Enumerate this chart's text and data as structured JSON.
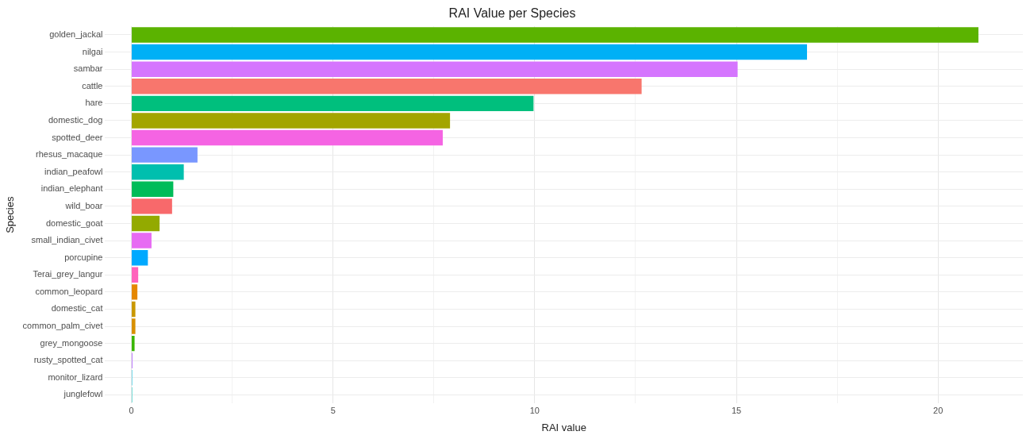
{
  "chart_data": {
    "type": "bar",
    "orientation": "horizontal",
    "title": "RAI Value per Species",
    "xlabel": "RAI value",
    "ylabel": "Species",
    "categories": [
      "golden_jackal",
      "nilgai",
      "sambar",
      "cattle",
      "hare",
      "domestic_dog",
      "spotted_deer",
      "rhesus_macaque",
      "indian_peafowl",
      "indian_elephant",
      "wild_boar",
      "domestic_goat",
      "small_indian_civet",
      "porcupine",
      "Terai_grey_langur",
      "common_leopard",
      "domestic_cat",
      "common_palm_civet",
      "grey_mongoose",
      "rusty_spotted_cat",
      "monitor_lizard",
      "junglefowl"
    ],
    "values": [
      21.0,
      16.75,
      15.03,
      12.65,
      9.97,
      7.9,
      7.72,
      1.64,
      1.3,
      1.04,
      1.01,
      0.7,
      0.5,
      0.41,
      0.17,
      0.15,
      0.1,
      0.1,
      0.08,
      0.03,
      0.02,
      0.02
    ],
    "colors": [
      "#5bb300",
      "#00b0f6",
      "#d575fe",
      "#f8766d",
      "#00bf7d",
      "#a3a500",
      "#f564e3",
      "#7997ff",
      "#00bfae",
      "#00bc59",
      "#f8696b",
      "#93aa00",
      "#e76bf3",
      "#00a9ff",
      "#ff62bc",
      "#e58700",
      "#c99800",
      "#d89000",
      "#39b600",
      "#bf80ff",
      "#00bbda",
      "#00c0b8"
    ],
    "xlim": [
      -0.65,
      22.1
    ],
    "xticks": [
      0,
      {
        "value": 2.5,
        "label": null
      },
      5,
      {
        "value": 7.5,
        "label": null
      },
      10,
      {
        "value": 12.5,
        "label": null
      },
      15,
      {
        "value": 17.5,
        "label": null
      },
      20
    ],
    "grid": true,
    "legend": false
  }
}
